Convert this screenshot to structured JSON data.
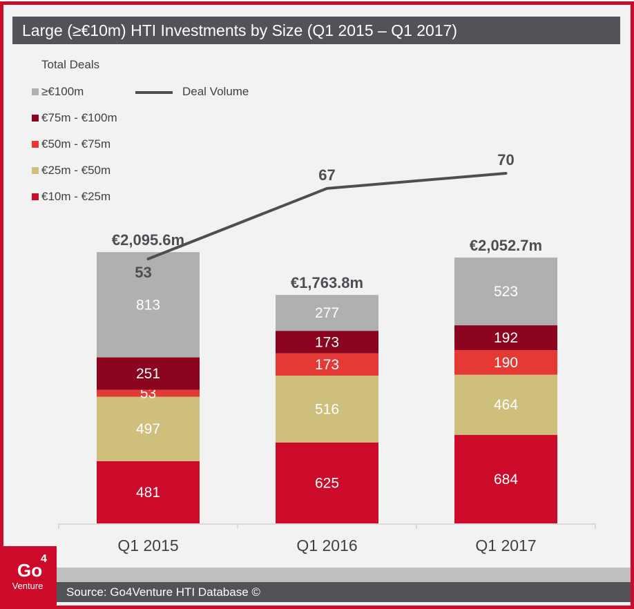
{
  "chart_data": {
    "type": "bar",
    "stacked": true,
    "title": "Large (≥€10m) HTI Investments by Size (Q1 2015 – Q1 2017)",
    "categories": [
      "Q1 2015",
      "Q1 2016",
      "Q1 2017"
    ],
    "ylabel": "",
    "xlabel": "",
    "ylim": [
      0,
      2100
    ],
    "grid": false,
    "legend_title": "Total Deals",
    "legend_position": "top-left",
    "series": [
      {
        "name": "€10m - €25m",
        "color": "#cc0a2a",
        "values": [
          481,
          625,
          684
        ]
      },
      {
        "name": "€25m - €50m",
        "color": "#cfbf7c",
        "values": [
          497,
          516,
          464
        ]
      },
      {
        "name": "€50m - €75m",
        "color": "#e53935",
        "values": [
          53,
          173,
          190
        ]
      },
      {
        "name": "€75m - €100m",
        "color": "#8b0420",
        "values": [
          251,
          173,
          192
        ]
      },
      {
        "name": "≥€100m",
        "color": "#b0b0b0",
        "values": [
          813,
          277,
          523
        ]
      }
    ],
    "legend_order": [
      "≥€100m",
      "€75m - €100m",
      "€50m - €75m",
      "€25m - €50m",
      "€10m - €25m"
    ],
    "totals": [
      2095.6,
      1763.8,
      2052.7
    ],
    "total_labels": [
      "€2,095.6m",
      "€1,763.8m",
      "€2,052.7m"
    ],
    "line_series": {
      "name": "Deal Volume",
      "color": "#4d4e53",
      "values": [
        53,
        67,
        70
      ],
      "ylim": [
        0,
        95
      ]
    }
  },
  "logo": {
    "main": "Go",
    "superscript": "4",
    "sub": "Venture"
  },
  "source": "Source: Go4Venture HTI Database ©"
}
